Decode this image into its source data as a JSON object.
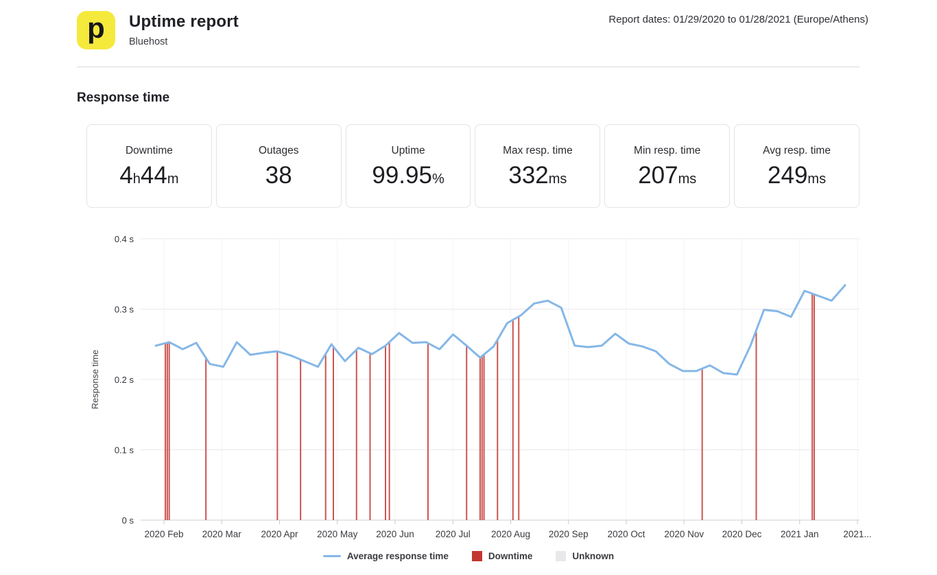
{
  "header": {
    "logo_letter": "p",
    "title": "Uptime report",
    "subtitle": "Bluehost",
    "report_dates": "Report dates: 01/29/2020 to 01/28/2021 (Europe/Athens)"
  },
  "section": {
    "title": "Response time"
  },
  "stats": [
    {
      "id": "downtime",
      "label": "Downtime",
      "segments": [
        {
          "t": "4",
          "small": false
        },
        {
          "t": "h",
          "small": true
        },
        {
          "t": "44",
          "small": false
        },
        {
          "t": "m",
          "small": true
        }
      ]
    },
    {
      "id": "outages",
      "label": "Outages",
      "segments": [
        {
          "t": "38",
          "small": false
        }
      ]
    },
    {
      "id": "uptime",
      "label": "Uptime",
      "segments": [
        {
          "t": "99.95",
          "small": false
        },
        {
          "t": "%",
          "small": true
        }
      ]
    },
    {
      "id": "max-resp-time",
      "label": "Max resp. time",
      "segments": [
        {
          "t": "332",
          "small": false
        },
        {
          "t": "ms",
          "small": true
        }
      ]
    },
    {
      "id": "min-resp-time",
      "label": "Min resp. time",
      "segments": [
        {
          "t": "207",
          "small": false
        },
        {
          "t": "ms",
          "small": true
        }
      ]
    },
    {
      "id": "avg-resp-time",
      "label": "Avg resp. time",
      "segments": [
        {
          "t": "249",
          "small": false
        },
        {
          "t": "ms",
          "small": true
        }
      ]
    }
  ],
  "chart_data": {
    "type": "line",
    "title": "Response time",
    "ylabel": "Response time",
    "ylim": [
      0,
      0.4
    ],
    "y_ticks": [
      "0.4 s",
      "0.3 s",
      "0.2 s",
      "0.1 s",
      "0 s"
    ],
    "x_tick_labels": [
      "2020 Feb",
      "2020 Mar",
      "2020 Apr",
      "2020 May",
      "2020 Jun",
      "2020 Jul",
      "2020 Aug",
      "2020 Sep",
      "2020 Oct",
      "2020 Nov",
      "2020 Dec",
      "2021 Jan",
      "2021..."
    ],
    "start_date": "2020-01-29",
    "grid": true,
    "legend_position": "bottom",
    "series": [
      {
        "name": "Average response time",
        "color": "#85b7e7",
        "unit": "s",
        "dates": [
          "2020-01-29",
          "2020-02-05",
          "2020-02-12",
          "2020-02-19",
          "2020-02-26",
          "2020-03-04",
          "2020-03-11",
          "2020-03-18",
          "2020-03-25",
          "2020-04-01",
          "2020-04-08",
          "2020-04-15",
          "2020-04-22",
          "2020-04-29",
          "2020-05-06",
          "2020-05-13",
          "2020-05-20",
          "2020-05-27",
          "2020-06-03",
          "2020-06-10",
          "2020-06-17",
          "2020-06-24",
          "2020-07-01",
          "2020-07-08",
          "2020-07-15",
          "2020-07-22",
          "2020-07-29",
          "2020-08-05",
          "2020-08-12",
          "2020-08-19",
          "2020-08-26",
          "2020-09-02",
          "2020-09-09",
          "2020-09-16",
          "2020-09-23",
          "2020-09-30",
          "2020-10-07",
          "2020-10-14",
          "2020-10-21",
          "2020-10-28",
          "2020-11-04",
          "2020-11-11",
          "2020-11-18",
          "2020-11-25",
          "2020-12-02",
          "2020-12-09",
          "2020-12-16",
          "2020-12-23",
          "2020-12-30",
          "2021-01-06",
          "2021-01-13",
          "2021-01-20"
        ],
        "values": [
          0.248,
          0.253,
          0.243,
          0.252,
          0.222,
          0.218,
          0.253,
          0.235,
          0.238,
          0.24,
          0.234,
          0.226,
          0.218,
          0.25,
          0.226,
          0.245,
          0.236,
          0.248,
          0.266,
          0.252,
          0.253,
          0.243,
          0.264,
          0.248,
          0.231,
          0.247,
          0.28,
          0.291,
          0.308,
          0.312,
          0.302,
          0.248,
          0.246,
          0.248,
          0.265,
          0.251,
          0.247,
          0.24,
          0.222,
          0.212,
          0.212,
          0.22,
          0.209,
          0.207,
          0.248,
          0.299,
          0.297,
          0.289,
          0.326,
          0.319,
          0.312,
          0.334
        ]
      }
    ],
    "downtime": {
      "name": "Downtime",
      "color": "#c23631",
      "dates": [
        "2020-02-03",
        "2020-02-04",
        "2020-02-05",
        "2020-02-24",
        "2020-04-01",
        "2020-04-13",
        "2020-04-26",
        "2020-04-30",
        "2020-05-12",
        "2020-05-19",
        "2020-05-27",
        "2020-05-29",
        "2020-06-18",
        "2020-07-08",
        "2020-07-15",
        "2020-07-16",
        "2020-07-17",
        "2020-07-24",
        "2020-08-01",
        "2020-08-04",
        "2020-11-07",
        "2020-12-05",
        "2021-01-03",
        "2021-01-04"
      ]
    },
    "unknown": {
      "name": "Unknown",
      "color": "#e9e9eb"
    },
    "legend": [
      {
        "label": "Average response time",
        "swatch": "line",
        "color": "#85b7e7"
      },
      {
        "label": "Downtime",
        "swatch": "square",
        "color": "#c23631"
      },
      {
        "label": "Unknown",
        "swatch": "square",
        "color": "#e9e9eb"
      }
    ]
  }
}
